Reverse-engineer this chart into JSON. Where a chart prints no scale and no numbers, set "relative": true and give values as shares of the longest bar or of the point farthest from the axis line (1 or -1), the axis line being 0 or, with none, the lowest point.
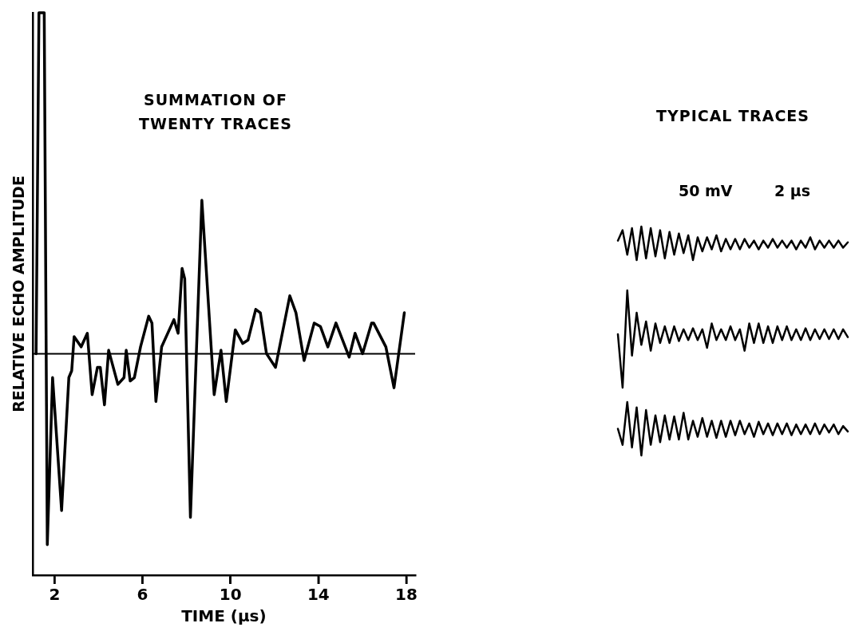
{
  "chart_data": [
    {
      "type": "line",
      "title": "SUMMATION OF TWENTY TRACES",
      "xlabel": "TIME (µs)",
      "ylabel": "RELATIVE ECHO AMPLITUDE",
      "relative": true,
      "xlim": [
        1,
        18.4
      ],
      "xticks": [
        2,
        6,
        10,
        14,
        18
      ],
      "ref_lines": [
        {
          "axis": "y",
          "value": 0,
          "color": "#000000"
        }
      ],
      "x": [
        1.16,
        1.29,
        1.53,
        1.67,
        1.91,
        2.32,
        2.65,
        2.78,
        2.89,
        3.21,
        3.49,
        3.71,
        3.95,
        4.08,
        4.27,
        4.46,
        4.88,
        5.16,
        5.26,
        5.44,
        5.63,
        5.91,
        6.28,
        6.43,
        6.61,
        6.87,
        7.43,
        7.62,
        7.8,
        7.92,
        8.18,
        8.7,
        9.26,
        9.57,
        9.81,
        10.22,
        10.56,
        10.8,
        11.15,
        11.36,
        11.64,
        12.05,
        12.7,
        12.98,
        13.35,
        13.81,
        14.09,
        14.43,
        14.8,
        15.4,
        15.67,
        16.01,
        16.42,
        16.51,
        17.07,
        17.44,
        17.91
      ],
      "series": [
        {
          "color": "#000000",
          "values": [
            0,
            1,
            1,
            -0.56,
            -0.07,
            -0.46,
            -0.07,
            -0.05,
            0.05,
            0.02,
            0.06,
            -0.12,
            -0.04,
            -0.04,
            -0.15,
            0.01,
            -0.09,
            -0.07,
            0.01,
            -0.08,
            -0.07,
            0.02,
            0.11,
            0.09,
            -0.14,
            0.02,
            0.1,
            0.06,
            0.25,
            0.22,
            -0.48,
            0.45,
            -0.12,
            0.01,
            -0.14,
            0.07,
            0.03,
            0.04,
            0.13,
            0.12,
            0,
            -0.04,
            0.17,
            0.12,
            -0.02,
            0.09,
            0.08,
            0.02,
            0.09,
            -0.01,
            0.06,
            0,
            0.09,
            0.09,
            0.02,
            -0.1,
            0.12
          ]
        }
      ]
    },
    {
      "type": "line",
      "title": "TYPICAL TRACES",
      "annotations": [
        "50 mV",
        "2 µs"
      ],
      "relative": true,
      "categories": [
        null,
        null,
        null,
        null,
        null,
        null,
        null,
        null,
        null,
        null,
        null,
        null,
        null,
        null,
        null,
        null,
        null,
        null,
        null,
        null,
        null,
        null,
        null,
        null,
        null,
        null,
        null,
        null,
        null,
        null,
        null,
        null,
        null,
        null,
        null,
        null,
        null,
        null,
        null,
        null,
        null,
        null,
        null,
        null,
        null,
        null,
        null,
        null,
        null,
        null
      ],
      "series": [
        {
          "color": "#000000",
          "values": [
            0.58,
            0.89,
            0.16,
            0.95,
            0,
            1,
            0.05,
            0.95,
            0.11,
            0.89,
            0.05,
            0.84,
            0.16,
            0.79,
            0.21,
            0.74,
            0,
            0.68,
            0.26,
            0.68,
            0.32,
            0.74,
            0.26,
            0.63,
            0.32,
            0.63,
            0.32,
            0.63,
            0.37,
            0.58,
            0.32,
            0.58,
            0.37,
            0.63,
            0.37,
            0.58,
            0.37,
            0.58,
            0.32,
            0.58,
            0.37,
            0.68,
            0.32,
            0.58,
            0.37,
            0.58,
            0.37,
            0.58,
            0.37,
            0.53
          ]
        }
      ]
    },
    {
      "type": "line",
      "relative": true,
      "categories": [
        null,
        null,
        null,
        null,
        null,
        null,
        null,
        null,
        null,
        null,
        null,
        null,
        null,
        null,
        null,
        null,
        null,
        null,
        null,
        null,
        null,
        null,
        null,
        null,
        null,
        null,
        null,
        null,
        null,
        null,
        null,
        null,
        null,
        null,
        null,
        null,
        null,
        null,
        null,
        null,
        null,
        null,
        null,
        null,
        null,
        null,
        null,
        null,
        null,
        null
      ],
      "series": [
        {
          "color": "#000000",
          "values": [
            0.55,
            0,
            1,
            0.33,
            0.77,
            0.44,
            0.68,
            0.38,
            0.66,
            0.46,
            0.63,
            0.46,
            0.63,
            0.48,
            0.6,
            0.49,
            0.61,
            0.49,
            0.6,
            0.41,
            0.66,
            0.49,
            0.6,
            0.49,
            0.63,
            0.49,
            0.6,
            0.38,
            0.66,
            0.46,
            0.66,
            0.46,
            0.63,
            0.46,
            0.63,
            0.49,
            0.63,
            0.49,
            0.6,
            0.49,
            0.61,
            0.49,
            0.6,
            0.5,
            0.6,
            0.5,
            0.6,
            0.5,
            0.6,
            0.52
          ]
        }
      ]
    },
    {
      "type": "line",
      "relative": true,
      "categories": [
        null,
        null,
        null,
        null,
        null,
        null,
        null,
        null,
        null,
        null,
        null,
        null,
        null,
        null,
        null,
        null,
        null,
        null,
        null,
        null,
        null,
        null,
        null,
        null,
        null,
        null,
        null,
        null,
        null,
        null,
        null,
        null,
        null,
        null,
        null,
        null,
        null,
        null,
        null,
        null,
        null,
        null,
        null,
        null,
        null,
        null,
        null,
        null,
        null,
        null
      ],
      "series": [
        {
          "color": "#000000",
          "values": [
            0.5,
            0.2,
            1,
            0.15,
            0.9,
            0,
            0.85,
            0.2,
            0.75,
            0.25,
            0.75,
            0.3,
            0.73,
            0.3,
            0.8,
            0.3,
            0.65,
            0.35,
            0.7,
            0.35,
            0.65,
            0.33,
            0.65,
            0.35,
            0.65,
            0.38,
            0.65,
            0.4,
            0.6,
            0.35,
            0.63,
            0.4,
            0.6,
            0.38,
            0.6,
            0.4,
            0.6,
            0.38,
            0.58,
            0.4,
            0.58,
            0.4,
            0.6,
            0.4,
            0.58,
            0.43,
            0.58,
            0.4,
            0.55,
            0.45
          ]
        }
      ]
    }
  ]
}
